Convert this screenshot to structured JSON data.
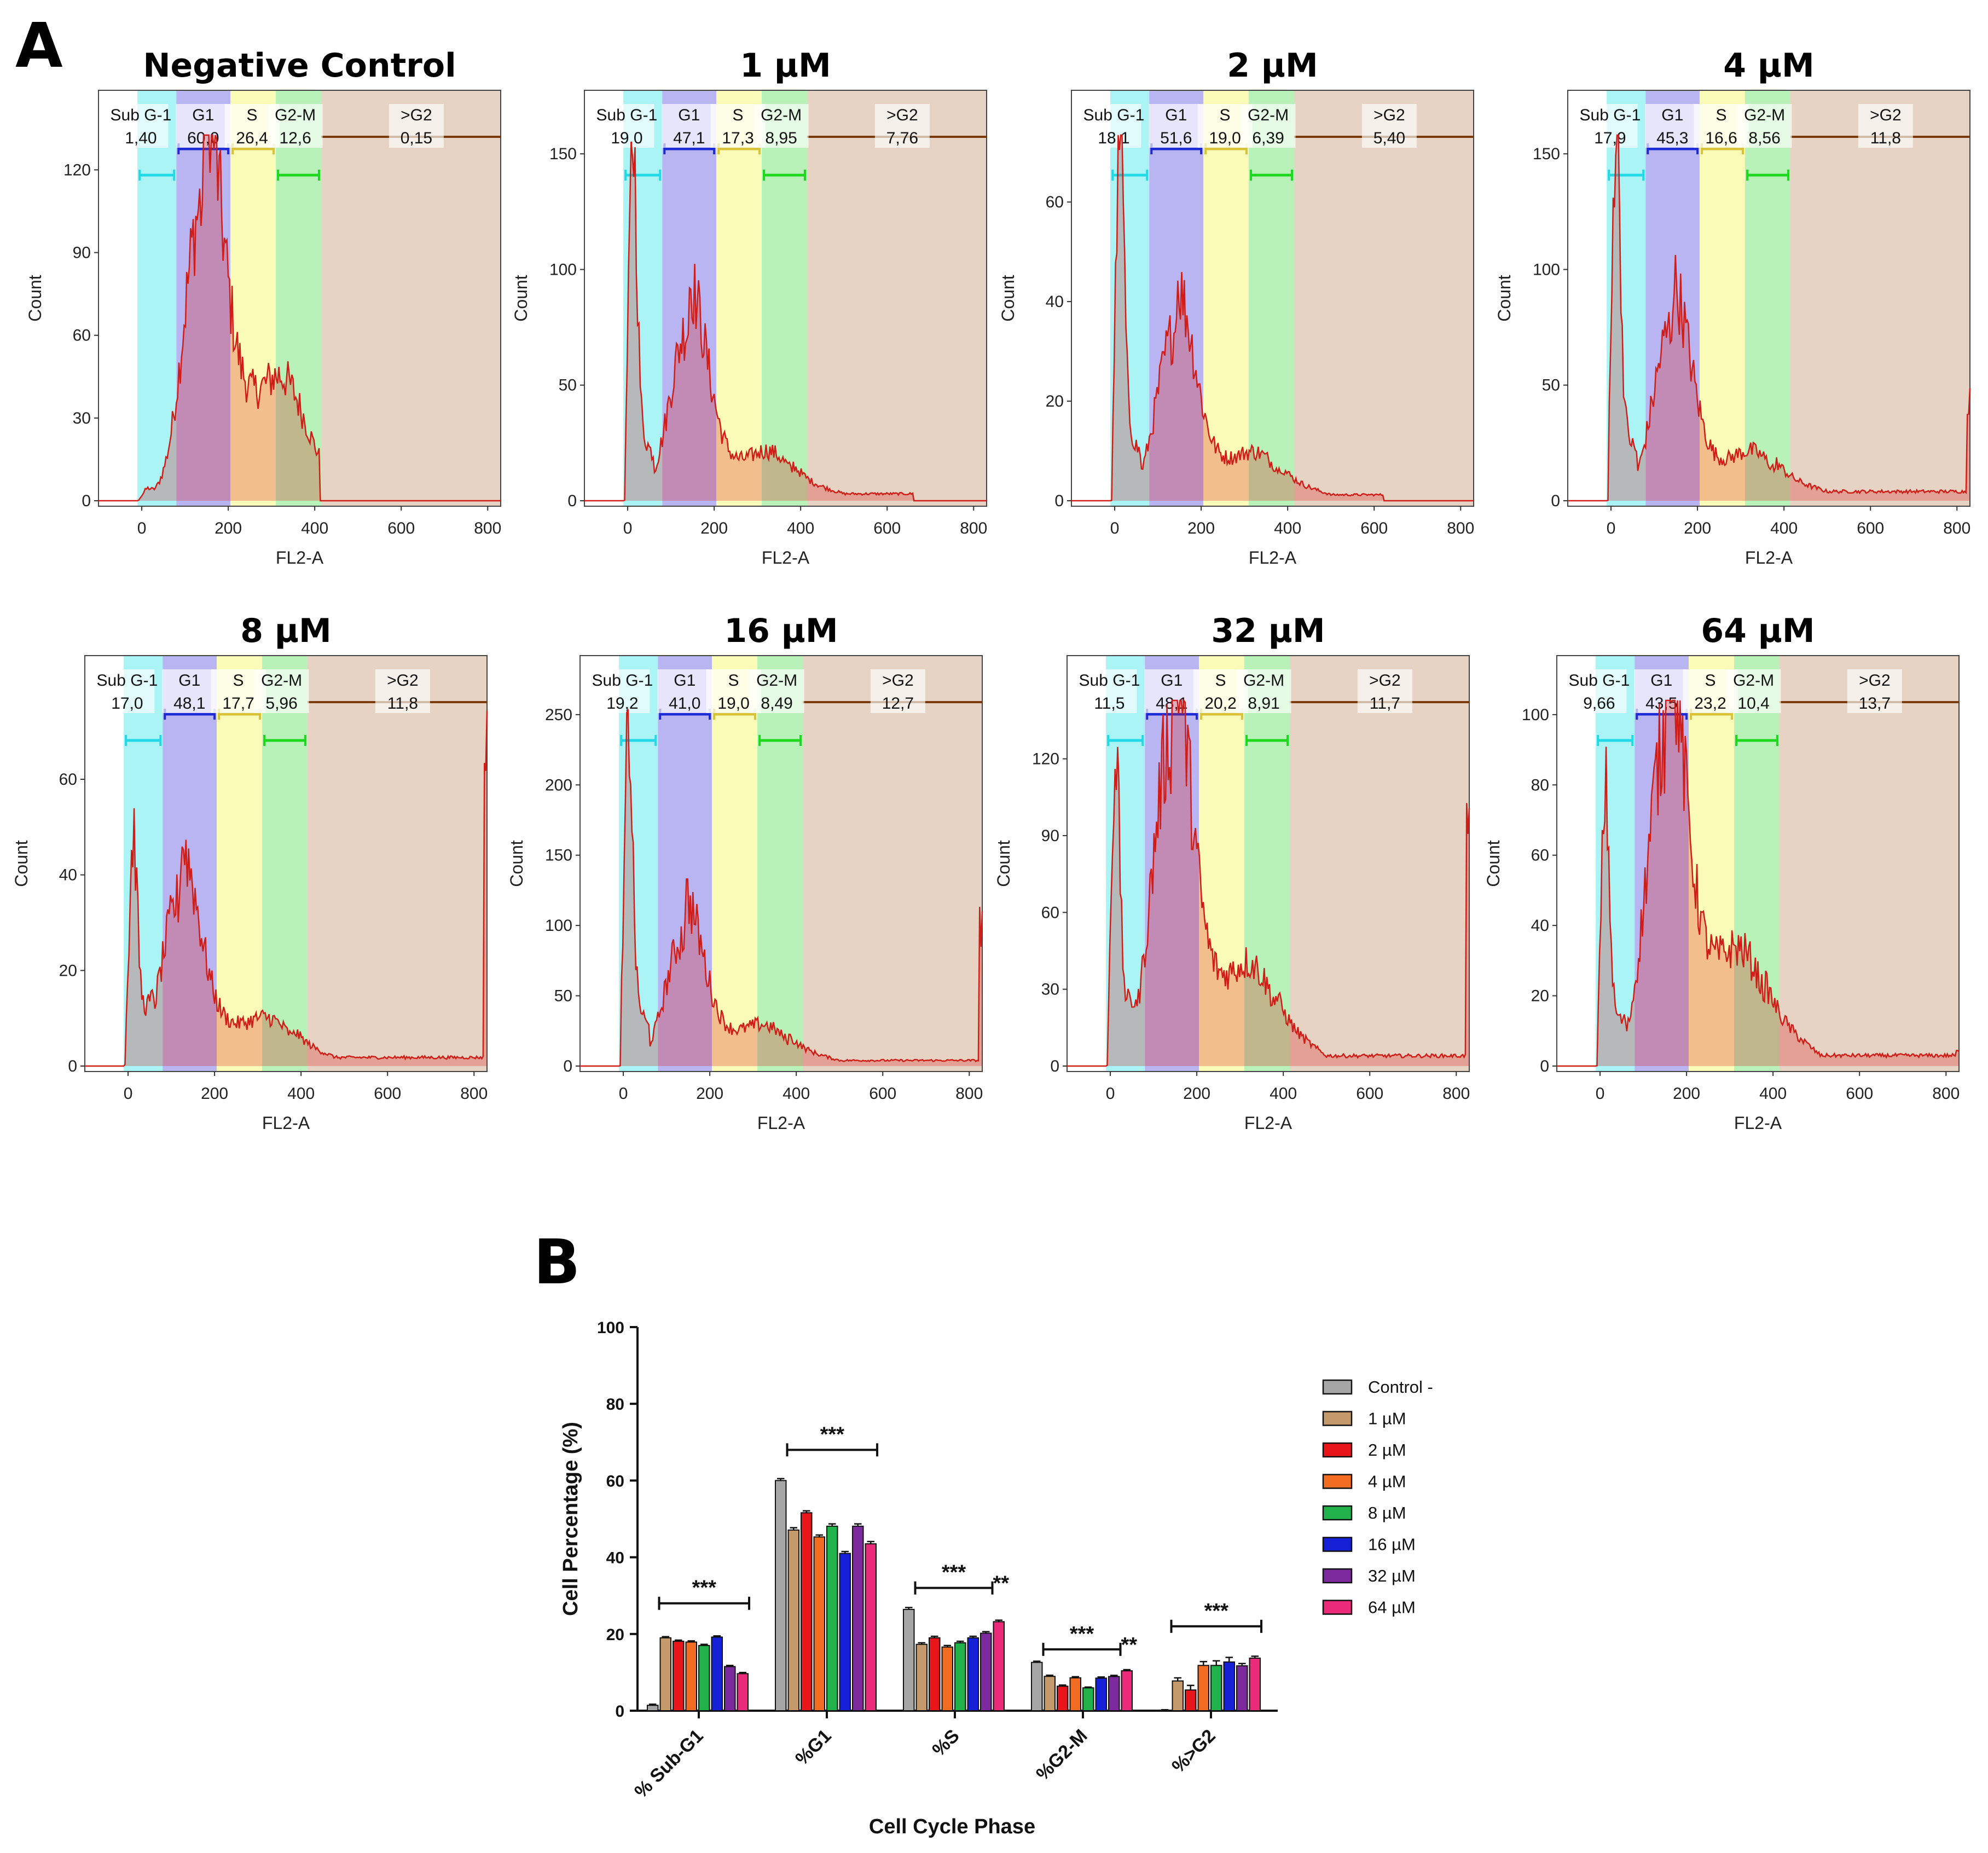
{
  "panel_a_label": "A",
  "panel_b_label": "B",
  "chart_data": [
    {
      "type": "histogram",
      "panel": "A",
      "xlabel": "FL2-A",
      "ylabel": "Count",
      "x_ticks": [
        "0",
        "200",
        "400",
        "600",
        "800"
      ],
      "xlim": [
        -100,
        830
      ],
      "gate_labels": [
        "Sub G-1",
        "G1",
        "S",
        "G2-M",
        ">G2"
      ],
      "gate_ranges": [
        [
          -10,
          80
        ],
        [
          80,
          205
        ],
        [
          205,
          310
        ],
        [
          310,
          415
        ],
        [
          415,
          830
        ]
      ],
      "plots": [
        {
          "title": "Negative Control",
          "ymax": 130,
          "y_ticks": [
            0,
            30,
            60,
            90,
            120
          ],
          "gate_values": [
            "1,40",
            "60,0",
            "26,4",
            "12,6",
            "0,15"
          ],
          "profile": {
            "sub_peak": 3,
            "g1_peak": 108,
            "g1_center": 140,
            "s_level": 48,
            "g2_level": 22,
            "tail_level": 0,
            "end_spike": 0,
            "cutoff": 410
          }
        },
        {
          "title": "1 µM",
          "ymax": 155,
          "y_ticks": [
            0,
            50,
            100,
            150
          ],
          "gate_values": [
            "19,0",
            "47,1",
            "17,3",
            "8,95",
            "7,76"
          ],
          "profile": {
            "sub_peak": 140,
            "g1_peak": 75,
            "g1_center": 140,
            "s_level": 20,
            "g2_level": 12,
            "tail_level": 3,
            "end_spike": 0,
            "cutoff": 660
          }
        },
        {
          "title": "2 µM",
          "ymax": 72,
          "y_ticks": [
            0,
            20,
            40,
            60
          ],
          "gate_values": [
            "18,1",
            "51,6",
            "19,0",
            "6,39",
            "5,40"
          ],
          "profile": {
            "sub_peak": 70,
            "g1_peak": 34,
            "g1_center": 140,
            "s_level": 10,
            "g2_level": 5,
            "tail_level": 1.2,
            "end_spike": 0,
            "cutoff": 620
          }
        },
        {
          "title": "4 µM",
          "ymax": 155,
          "y_ticks": [
            0,
            50,
            100,
            150
          ],
          "gate_values": [
            "17,9",
            "45,3",
            "16,6",
            "8,56",
            "11,8"
          ],
          "profile": {
            "sub_peak": 150,
            "g1_peak": 75,
            "g1_center": 140,
            "s_level": 20,
            "g2_level": 12,
            "tail_level": 4,
            "end_spike": 45,
            "cutoff": 830
          }
        },
        {
          "title": "8 µM",
          "ymax": 75,
          "y_ticks": [
            0,
            20,
            40,
            60
          ],
          "gate_values": [
            "17,0",
            "48,1",
            "17,7",
            "5,96",
            "11,8"
          ],
          "profile": {
            "sub_peak": 42,
            "g1_peak": 35,
            "g1_center": 120,
            "s_level": 12,
            "g2_level": 5,
            "tail_level": 1.8,
            "end_spike": 68,
            "cutoff": 830
          }
        },
        {
          "title": "16 µM",
          "ymax": 255,
          "y_ticks": [
            0,
            50,
            100,
            150,
            200,
            250
          ],
          "gate_values": [
            "19,2",
            "41,0",
            "19,0",
            "8,49",
            "12,7"
          ],
          "profile": {
            "sub_peak": 215,
            "g1_peak": 92,
            "g1_center": 140,
            "s_level": 30,
            "g2_level": 15,
            "tail_level": 4,
            "end_spike": 100,
            "cutoff": 830
          }
        },
        {
          "title": "32 µM",
          "ymax": 140,
          "y_ticks": [
            0,
            30,
            60,
            90,
            120
          ],
          "gate_values": [
            "11,5",
            "48,1",
            "20,2",
            "8,91",
            "11,7"
          ],
          "profile": {
            "sub_peak": 110,
            "g1_peak": 128,
            "g1_center": 140,
            "s_level": 42,
            "g2_level": 20,
            "tail_level": 4,
            "end_spike": 95,
            "cutoff": 830
          }
        },
        {
          "title": "64 µM",
          "ymax": 102,
          "y_ticks": [
            0,
            20,
            40,
            60,
            80,
            100
          ],
          "gate_values": [
            "9,66",
            "43,5",
            "23,2",
            "10,4",
            "13,7"
          ],
          "profile": {
            "sub_peak": 70,
            "g1_peak": 92,
            "g1_center": 150,
            "s_level": 36,
            "g2_level": 15,
            "tail_level": 3,
            "end_spike": 4,
            "cutoff": 830
          }
        }
      ]
    },
    {
      "type": "bar",
      "panel": "B",
      "title": "",
      "xlabel": "Cell Cycle Phase",
      "ylabel": "Cell Percentage (%)",
      "ylim": [
        0,
        100
      ],
      "y_ticks": [
        0,
        20,
        40,
        60,
        80,
        100
      ],
      "categories": [
        "% Sub-G1",
        "%G1",
        "%S",
        "%G2-M",
        "%>G2"
      ],
      "series": [
        {
          "name": "Control -",
          "color": "#a6a6a6",
          "values": [
            1.4,
            60.0,
            26.4,
            12.6,
            0.15
          ],
          "errors": [
            0.3,
            0.5,
            0.5,
            0.3,
            0.1
          ]
        },
        {
          "name": "1 µM",
          "color": "#c49a6c",
          "values": [
            19.0,
            47.1,
            17.3,
            8.95,
            7.76
          ],
          "errors": [
            0.3,
            0.6,
            0.4,
            0.3,
            0.8
          ]
        },
        {
          "name": "2 µM",
          "color": "#e8161b",
          "values": [
            18.1,
            51.6,
            19.0,
            6.39,
            5.4
          ],
          "errors": [
            0.3,
            0.5,
            0.4,
            0.3,
            1.2
          ]
        },
        {
          "name": "4 µM",
          "color": "#f26c21",
          "values": [
            17.9,
            45.3,
            16.6,
            8.56,
            11.8
          ],
          "errors": [
            0.3,
            0.5,
            0.4,
            0.3,
            1.0
          ]
        },
        {
          "name": "8 µM",
          "color": "#22b24c",
          "values": [
            17.0,
            48.1,
            17.7,
            5.96,
            11.8
          ],
          "errors": [
            0.3,
            0.6,
            0.4,
            0.2,
            1.2
          ]
        },
        {
          "name": "16 µM",
          "color": "#1620d6",
          "values": [
            19.2,
            41.0,
            19.0,
            8.49,
            12.7
          ],
          "errors": [
            0.3,
            0.5,
            0.4,
            0.3,
            1.2
          ]
        },
        {
          "name": "32 µM",
          "color": "#7d2a9e",
          "values": [
            11.5,
            48.1,
            20.2,
            8.91,
            11.7
          ],
          "errors": [
            0.3,
            0.6,
            0.4,
            0.3,
            0.6
          ]
        },
        {
          "name": "64 µM",
          "color": "#ec2a7a",
          "values": [
            9.66,
            43.5,
            23.2,
            10.4,
            13.7
          ],
          "errors": [
            0.3,
            0.6,
            0.4,
            0.3,
            0.5
          ]
        }
      ],
      "significance": [
        {
          "category": "% Sub-G1",
          "label": "***",
          "from_series": 1,
          "to_series": 7,
          "level": 28
        },
        {
          "category": "%G1",
          "label": "***",
          "from_series": 1,
          "to_series": 7,
          "level": 68
        },
        {
          "category": "%S",
          "label": "***",
          "from_series": 1,
          "to_series": 6,
          "level": 32
        },
        {
          "category": "%S",
          "label": "**",
          "from_series": 7,
          "to_series": 7,
          "level": 32
        },
        {
          "category": "%G2-M",
          "label": "***",
          "from_series": 1,
          "to_series": 6,
          "level": 16
        },
        {
          "category": "%G2-M",
          "label": "**",
          "from_series": 7,
          "to_series": 7,
          "level": 16
        },
        {
          "category": "%>G2",
          "label": "***",
          "from_series": 1,
          "to_series": 7,
          "level": 22
        }
      ],
      "legend_position": "right"
    }
  ]
}
